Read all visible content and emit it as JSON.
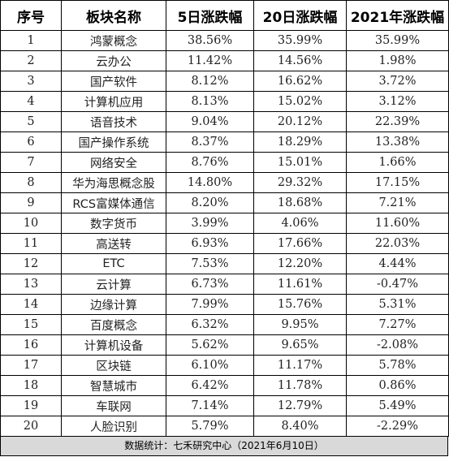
{
  "headers": [
    "序号",
    "板块名称",
    "5日涨跌幅",
    "20日涨跌幅",
    "2021年涨跌幅"
  ],
  "rows": [
    {
      "no": "1",
      "name": "鸿蒙概念",
      "d5": "38.56%",
      "d20": "35.99%",
      "y2021": "35.99%"
    },
    {
      "no": "2",
      "name": "云办公",
      "d5": "11.42%",
      "d20": "14.56%",
      "y2021": "1.98%"
    },
    {
      "no": "3",
      "name": "国产软件",
      "d5": "8.12%",
      "d20": "16.62%",
      "y2021": "3.72%"
    },
    {
      "no": "4",
      "name": "计算机应用",
      "d5": "8.13%",
      "d20": "15.02%",
      "y2021": "3.12%"
    },
    {
      "no": "5",
      "name": "语音技术",
      "d5": "9.04%",
      "d20": "20.12%",
      "y2021": "22.39%"
    },
    {
      "no": "6",
      "name": "国产操作系统",
      "d5": "8.37%",
      "d20": "18.29%",
      "y2021": "13.38%"
    },
    {
      "no": "7",
      "name": "网络安全",
      "d5": "8.76%",
      "d20": "15.01%",
      "y2021": "1.66%"
    },
    {
      "no": "8",
      "name": "华为海思概念股",
      "d5": "14.80%",
      "d20": "29.32%",
      "y2021": "17.15%"
    },
    {
      "no": "9",
      "name": "RCS富媒体通信",
      "d5": "8.20%",
      "d20": "18.68%",
      "y2021": "7.21%"
    },
    {
      "no": "10",
      "name": "数字货币",
      "d5": "3.99%",
      "d20": "4.06%",
      "y2021": "11.60%"
    },
    {
      "no": "11",
      "name": "高送转",
      "d5": "6.93%",
      "d20": "17.66%",
      "y2021": "22.03%"
    },
    {
      "no": "12",
      "name": "ETC",
      "d5": "7.53%",
      "d20": "12.20%",
      "y2021": "4.44%"
    },
    {
      "no": "13",
      "name": "云计算",
      "d5": "6.73%",
      "d20": "11.61%",
      "y2021": "-0.47%"
    },
    {
      "no": "14",
      "name": "边缘计算",
      "d5": "7.99%",
      "d20": "15.76%",
      "y2021": "5.31%"
    },
    {
      "no": "15",
      "name": "百度概念",
      "d5": "6.32%",
      "d20": "9.95%",
      "y2021": "7.27%"
    },
    {
      "no": "16",
      "name": "计算机设备",
      "d5": "5.62%",
      "d20": "9.65%",
      "y2021": "-2.08%"
    },
    {
      "no": "17",
      "name": "区块链",
      "d5": "6.10%",
      "d20": "11.17%",
      "y2021": "5.78%"
    },
    {
      "no": "18",
      "name": "智慧城市",
      "d5": "6.42%",
      "d20": "11.78%",
      "y2021": "0.86%"
    },
    {
      "no": "19",
      "name": "车联网",
      "d5": "7.14%",
      "d20": "12.79%",
      "y2021": "5.49%"
    },
    {
      "no": "20",
      "name": "人脸识别",
      "d5": "5.79%",
      "d20": "8.40%",
      "y2021": "-2.29%"
    }
  ],
  "footer": "数据统计：七禾研究中心（2021年6月10日）"
}
